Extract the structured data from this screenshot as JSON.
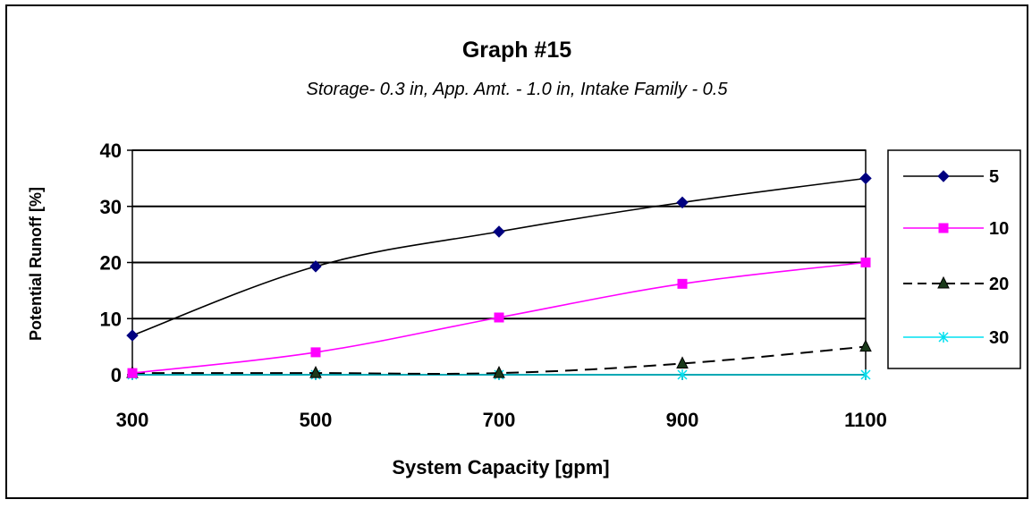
{
  "chart_data": {
    "type": "line",
    "title": "Graph #15",
    "subtitle": "Storage- 0.3 in,  App. Amt. - 1.0 in,  Intake Family - 0.5",
    "xlabel": "System Capacity [gpm]",
    "ylabel": "Potential Runoff [%]",
    "categories": [
      300,
      500,
      700,
      900,
      1100
    ],
    "x_tick_labels": [
      "300",
      "500",
      "700",
      "900",
      "1100"
    ],
    "y_tick_labels": [
      "0",
      "10",
      "20",
      "30",
      "40"
    ],
    "ylim": [
      0,
      40
    ],
    "grid": "horizontal",
    "legend_position": "right",
    "series": [
      {
        "name": "5",
        "values": [
          7,
          19.3,
          25.5,
          30.7,
          35
        ],
        "color": "#000080",
        "line_color": "#000000",
        "marker": "diamond",
        "dash": "solid"
      },
      {
        "name": "10",
        "values": [
          0.3,
          4,
          10.2,
          16.2,
          20
        ],
        "color": "#ff00ff",
        "line_color": "#ff00ff",
        "marker": "square",
        "dash": "solid"
      },
      {
        "name": "20",
        "values": [
          0.3,
          0.3,
          0.3,
          2,
          5
        ],
        "color": "#000000",
        "line_color": "#000000",
        "marker": "triangle",
        "dash": "dashed"
      },
      {
        "name": "30",
        "values": [
          0,
          0,
          0,
          0,
          0
        ],
        "color": "#00e0f0",
        "line_color": "#00e0f0",
        "marker": "star",
        "dash": "solid"
      }
    ]
  }
}
